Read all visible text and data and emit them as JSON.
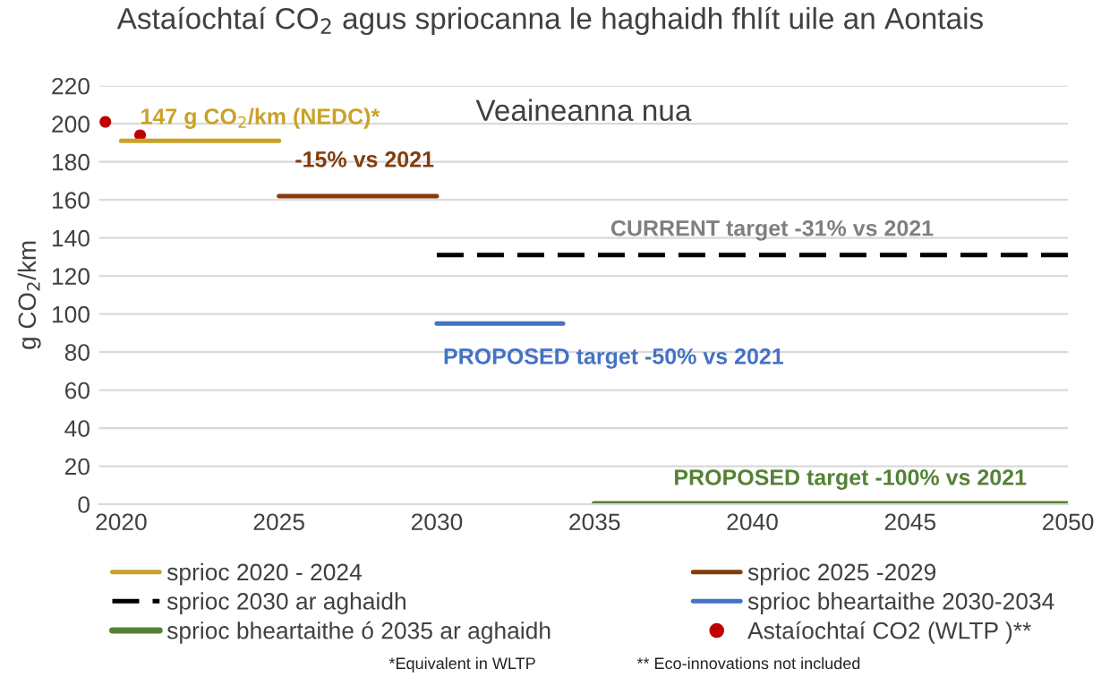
{
  "chart_data": {
    "type": "line",
    "title": "Astaíochtaí CO$_{2}$ agus spriocanna le haghaidh fhlít uile an Aontais",
    "subtitle": "Veaineanna nua",
    "ylabel": "g CO$_{2}$/km",
    "xlim": [
      2019.3,
      2050
    ],
    "xticks": [
      2020,
      2025,
      2030,
      2035,
      2040,
      2045,
      2050
    ],
    "ylim": [
      0,
      220
    ],
    "yticks": [
      0,
      20,
      40,
      60,
      80,
      100,
      120,
      140,
      160,
      180,
      200,
      220
    ],
    "grid": "y",
    "legend": "bottom",
    "series": [
      {
        "name": "sprioc 2020 - 2024",
        "color": "#c9a227",
        "x": [
          2020,
          2025
        ],
        "values": [
          191,
          191
        ]
      },
      {
        "name": "sprioc 2025 -2029",
        "color": "#843c0c",
        "x": [
          2025,
          2030
        ],
        "values": [
          162,
          162
        ]
      },
      {
        "name": "sprioc 2030 ar aghaidh",
        "color": "#000000",
        "x": [
          2030,
          2050
        ],
        "values": [
          131,
          131
        ],
        "line_style": "dashed"
      },
      {
        "name": "sprioc bheartaithe 2030-2034",
        "color": "#4472c4",
        "x": [
          2030,
          2034
        ],
        "values": [
          95,
          95
        ]
      },
      {
        "name": "sprioc bheartaithe ó 2035 ar aghaidh",
        "color": "#548235",
        "x": [
          2035,
          2050
        ],
        "values": [
          0,
          0
        ]
      },
      {
        "name": "Astaíochtaí CO2 (WLTP )**",
        "color": "#c00000",
        "type": "scatter",
        "marker": "circle",
        "x": [
          2019.5,
          2020.6
        ],
        "values": [
          201,
          194
        ]
      }
    ],
    "annotations": [
      "147 g CO$_{2}$/km (NEDC)*",
      "-15% vs 2021",
      "CURRENT target -31% vs 2021",
      "PROPOSED target -50% vs 2021",
      "PROPOSED target -100% vs 2021",
      "*Equivalent in WLTP",
      "** Eco-innovations not included"
    ]
  }
}
